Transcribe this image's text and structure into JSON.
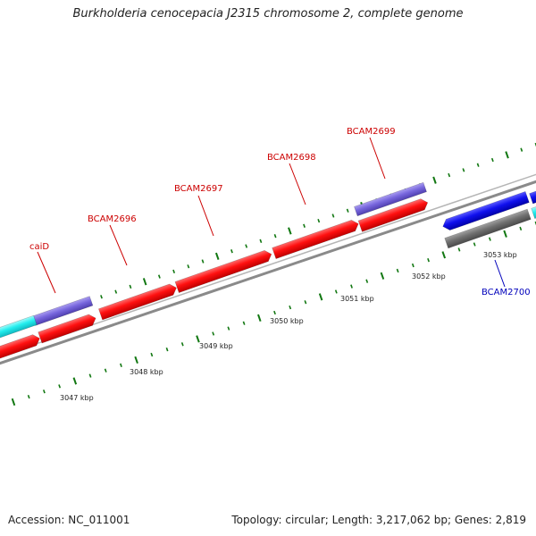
{
  "title": "Burkholderia cenocepacia J2315 chromosome 2, complete genome",
  "footer": {
    "accession": "Accession: NC_011001",
    "summary": "Topology: circular; Length: 3,217,062 bp; Genes: 2,819"
  },
  "colors": {
    "forward_gene": "#ff1010",
    "forward_other": "#7766dd",
    "reverse_gene": "#1010ee",
    "reverse_other": "#707070",
    "cyan_feature": "#22eeee",
    "backbone": "#8a8a8a",
    "tick": "#117711",
    "label_forward": "#cc0000",
    "label_reverse": "#0000bb"
  },
  "kbp_labels": [
    "3047 kbp",
    "3048 kbp",
    "3049 kbp",
    "3050 kbp",
    "3051 kbp",
    "3052 kbp",
    "3053 kbp"
  ],
  "gene_labels": [
    {
      "text": "caiD",
      "strand": "forward"
    },
    {
      "text": "BCAM2696",
      "strand": "forward"
    },
    {
      "text": "BCAM2697",
      "strand": "forward"
    },
    {
      "text": "BCAM2698",
      "strand": "forward"
    },
    {
      "text": "BCAM2699",
      "strand": "forward"
    },
    {
      "text": "BCAM2700",
      "strand": "reverse"
    }
  ]
}
